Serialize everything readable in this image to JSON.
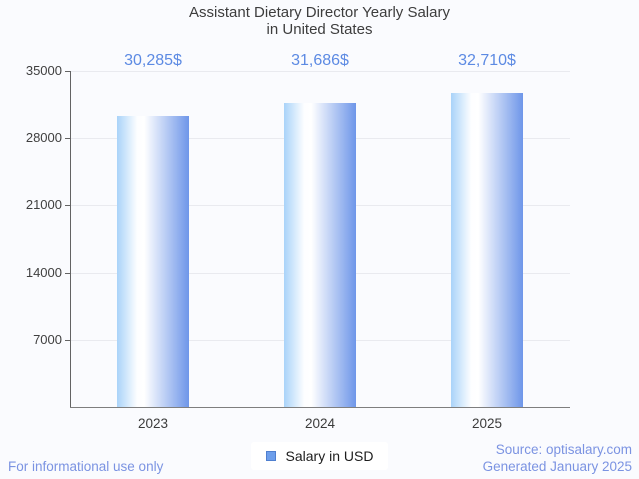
{
  "title": {
    "line1": "Assistant Dietary Director Yearly Salary",
    "line2": "in United States"
  },
  "chart_data": {
    "type": "bar",
    "categories": [
      "2023",
      "2024",
      "2025"
    ],
    "series": [
      {
        "name": "Salary in USD",
        "values": [
          30285,
          31686,
          32710
        ]
      }
    ],
    "value_labels": [
      "30,285$",
      "31,686$",
      "32,710$"
    ],
    "title": "Assistant Dietary Director Yearly Salary in United States",
    "xlabel": "",
    "ylabel": "",
    "ylim": [
      0,
      35000
    ],
    "yticks": [
      7000,
      14000,
      21000,
      28000,
      35000
    ],
    "grid": true,
    "legend_position": "bottom",
    "bar_gradient": [
      "#a9d3f9",
      "#ffffff",
      "#6e96e9"
    ],
    "value_label_color": "#5c8ae3"
  },
  "legend": {
    "label": "Salary in USD",
    "swatch_color": "#6d9eeb"
  },
  "footer": {
    "note": "For informational use only",
    "source_line1": "Source: optisalary.com",
    "source_line2": "Generated January 2025"
  }
}
